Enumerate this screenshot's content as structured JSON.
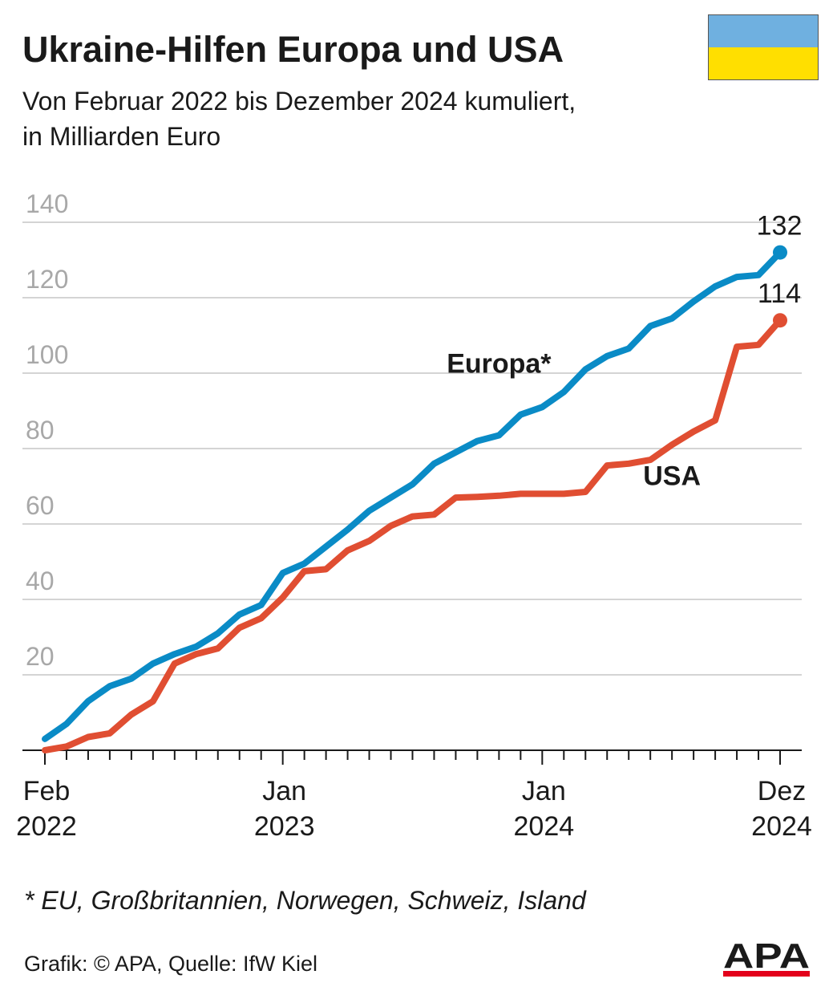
{
  "header": {
    "title": "Ukraine-Hilfen Europa und USA",
    "subtitle_line1": "Von Februar 2022 bis Dezember 2024 kumuliert,",
    "subtitle_line2": "in Milliarden Euro"
  },
  "flag": {
    "top_color": "#6fb0e0",
    "bottom_color": "#ffdf00",
    "name": "ukraine-flag-icon"
  },
  "chart_data": {
    "type": "line",
    "title": "Ukraine-Hilfen Europa und USA",
    "subtitle": "Von Februar 2022 bis Dezember 2024 kumuliert, in Milliarden Euro",
    "x": [
      "2022-02",
      "2022-03",
      "2022-04",
      "2022-05",
      "2022-06",
      "2022-07",
      "2022-08",
      "2022-09",
      "2022-10",
      "2022-11",
      "2022-12",
      "2023-01",
      "2023-02",
      "2023-03",
      "2023-04",
      "2023-05",
      "2023-06",
      "2023-07",
      "2023-08",
      "2023-09",
      "2023-10",
      "2023-11",
      "2023-12",
      "2024-01",
      "2024-02",
      "2024-03",
      "2024-04",
      "2024-05",
      "2024-06",
      "2024-07",
      "2024-08",
      "2024-09",
      "2024-10",
      "2024-11",
      "2024-12"
    ],
    "series": [
      {
        "name": "Europa*",
        "color": "#0a8bc6",
        "end_label": "132",
        "values": [
          3,
          7,
          13,
          17,
          19,
          23,
          25.5,
          27.5,
          31,
          36,
          38.5,
          47,
          49.5,
          54,
          58.5,
          63.5,
          67,
          70.5,
          76,
          79,
          82,
          83.5,
          89,
          91,
          95,
          101,
          104.5,
          106.5,
          112.5,
          114.5,
          119,
          123,
          125.5,
          126,
          132
        ]
      },
      {
        "name": "USA",
        "color": "#e04e32",
        "end_label": "114",
        "values": [
          0,
          1,
          3.5,
          4.5,
          9.5,
          13,
          23,
          25.5,
          27,
          32.5,
          35,
          40.5,
          47.5,
          48,
          53,
          55.5,
          59.5,
          62,
          62.5,
          67,
          67.2,
          67.5,
          68,
          68,
          68,
          68.5,
          75.5,
          76,
          77,
          81,
          84.5,
          87.5,
          107,
          107.5,
          114
        ]
      }
    ],
    "x_tick_labels": [
      {
        "month": "Feb",
        "year": "2022",
        "at": "2022-02"
      },
      {
        "month": "Jan",
        "year": "2023",
        "at": "2023-01"
      },
      {
        "month": "Jan",
        "year": "2024",
        "at": "2024-01"
      },
      {
        "month": "Dez",
        "year": "2024",
        "at": "2024-12"
      }
    ],
    "y_ticks": [
      20,
      40,
      60,
      80,
      100,
      120,
      140
    ],
    "ylim": [
      0,
      140
    ],
    "grid": true,
    "legend": "inline labels next to lines"
  },
  "footnote": "* EU, Großbritannien, Norwegen, Schweiz, Island",
  "credit": "Grafik: © APA, Quelle: IfW Kiel",
  "logo": {
    "text": "APA",
    "accent_color": "#e3001b",
    "name": "apa-logo"
  }
}
